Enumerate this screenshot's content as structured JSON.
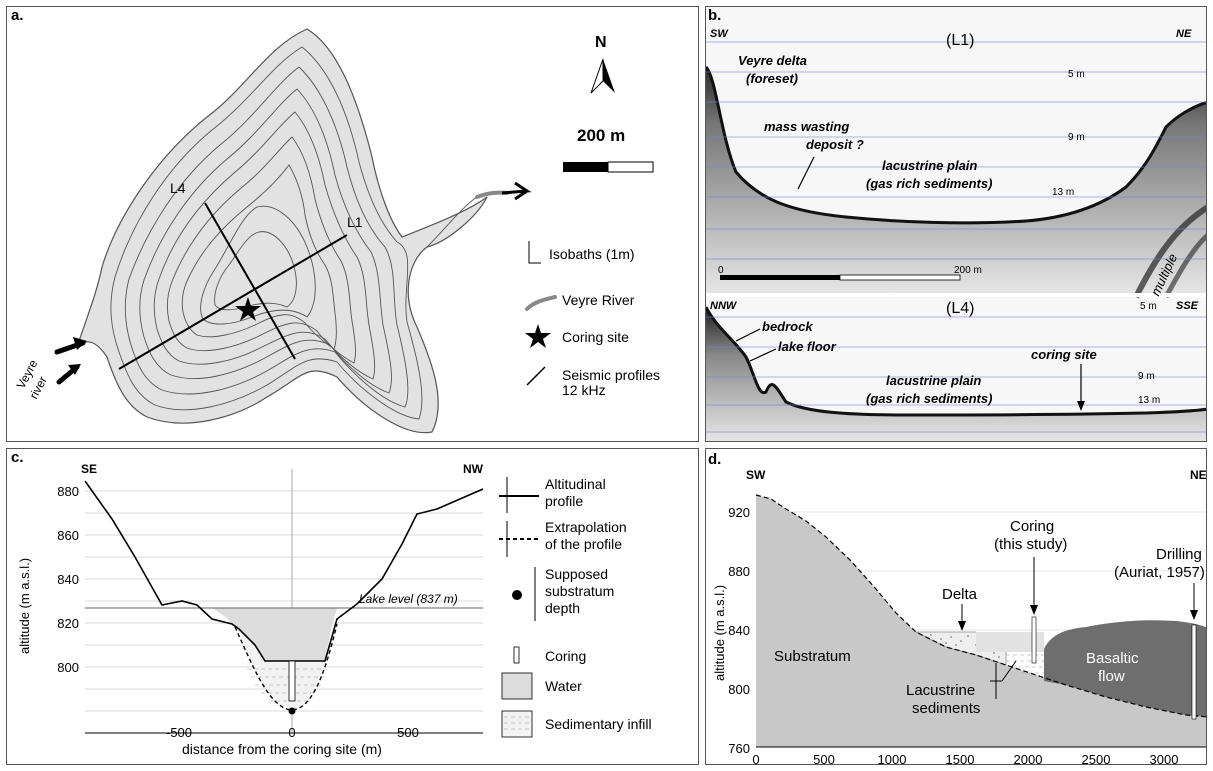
{
  "panel_a": {
    "label": "a.",
    "north": "N",
    "scale_text": "200 m",
    "profile_l4": "L4",
    "profile_l1": "L1",
    "river_label_1": "Veyre",
    "river_label_2": "river",
    "legend": {
      "isobaths": "Isobaths (1m)",
      "river": "Veyre River",
      "coring": "Coring site",
      "seismic_1": "Seismic profiles",
      "seismic_2": "12 kHz"
    }
  },
  "panel_b": {
    "label": "b.",
    "l1_title": "(L1)",
    "sw": "SW",
    "ne": "NE",
    "delta_1": "Veyre delta",
    "delta_2": "(foreset)",
    "mass_1": "mass wasting",
    "mass_2": "deposit ?",
    "plain_1": "lacustrine plain",
    "plain_2": "(gas rich sediments)",
    "depth_5": "5 m",
    "depth_9": "9 m",
    "depth_13": "13 m",
    "scale_0": "0",
    "scale_200": "200 m",
    "multiple": "multiple",
    "l4_title": "(L4)",
    "nnw": "NNW",
    "sse": "SSE",
    "bedrock": "bedrock",
    "lake_floor": "lake floor",
    "coring_site": "coring site",
    "plain2_1": "lacustrine plain",
    "plain2_2": "(gas rich sediments)",
    "depth2_5": "5 m",
    "depth2_9": "9 m",
    "depth2_13": "13 m"
  },
  "panel_c": {
    "label": "c.",
    "se": "SE",
    "nw": "NW",
    "ylabel": "altitude (m a.s.l.)",
    "xlabel": "distance from the coring site (m)",
    "lake_level": "Lake level (837 m)",
    "yticks": [
      "880",
      "860",
      "840",
      "820",
      "800"
    ],
    "xticks": [
      "-500",
      "0",
      "500"
    ],
    "legend": {
      "profile_1": "Altitudinal",
      "profile_2": "profile",
      "extrap_1": "Extrapolation",
      "extrap_2": "of the profile",
      "substratum_1": "Supposed",
      "substratum_2": "substratum",
      "substratum_3": "depth",
      "coring": "Coring",
      "water": "Water",
      "sediment": "Sedimentary infill"
    }
  },
  "panel_d": {
    "label": "d.",
    "sw": "SW",
    "ne": "NE",
    "ylabel": "altitude (m a.s.l.)",
    "yticks": [
      "920",
      "880",
      "840",
      "800",
      "760"
    ],
    "xticks": [
      "0",
      "500",
      "1000",
      "1500",
      "2000",
      "2500",
      "3000"
    ],
    "substratum": "Substratum",
    "delta": "Delta",
    "coring_1": "Coring",
    "coring_2": "(this study)",
    "drilling_1": "Drilling",
    "drilling_2": "(Auriat, 1957)",
    "basaltic_1": "Basaltic",
    "basaltic_2": "flow",
    "lac_1": "Lacustrine",
    "lac_2": "sediments"
  },
  "colors": {
    "water": "#e2e2e2",
    "lake_fill": "#dcdcdc",
    "substratum": "#c8c8c8",
    "basalt": "#6e6e6e",
    "isobath": "#555555",
    "seismic_line": "#7a7fd6"
  }
}
